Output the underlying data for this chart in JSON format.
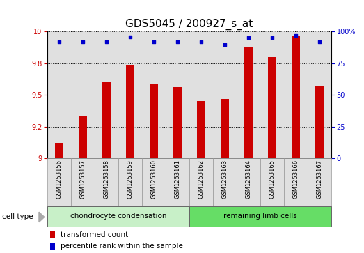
{
  "title": "GDS5045 / 200927_s_at",
  "samples": [
    "GSM1253156",
    "GSM1253157",
    "GSM1253158",
    "GSM1253159",
    "GSM1253160",
    "GSM1253161",
    "GSM1253162",
    "GSM1253163",
    "GSM1253164",
    "GSM1253165",
    "GSM1253166",
    "GSM1253167"
  ],
  "transformed_count": [
    9.12,
    9.33,
    9.6,
    9.74,
    9.59,
    9.56,
    9.45,
    9.47,
    9.88,
    9.8,
    9.97,
    9.57
  ],
  "percentile_rank": [
    92,
    92,
    92,
    96,
    92,
    92,
    92,
    90,
    95,
    95,
    97,
    92
  ],
  "bar_color": "#cc0000",
  "dot_color": "#0000cc",
  "ylim_left": [
    9.0,
    10.0
  ],
  "ylim_right": [
    0,
    100
  ],
  "yticks_left": [
    9.0,
    9.25,
    9.5,
    9.75,
    10.0
  ],
  "yticks_right": [
    0,
    25,
    50,
    75,
    100
  ],
  "group1_label": "chondrocyte condensation",
  "group2_label": "remaining limb cells",
  "group1_count": 6,
  "group2_count": 6,
  "cell_type_label": "cell type",
  "legend1_label": "transformed count",
  "legend2_label": "percentile rank within the sample",
  "bg_plot": "#e0e0e0",
  "bg_group1": "#c8f0c8",
  "bg_group2": "#66dd66",
  "grid_color": "#000000",
  "title_fontsize": 11,
  "tick_fontsize": 7,
  "label_fontsize": 8,
  "bar_width": 0.35
}
